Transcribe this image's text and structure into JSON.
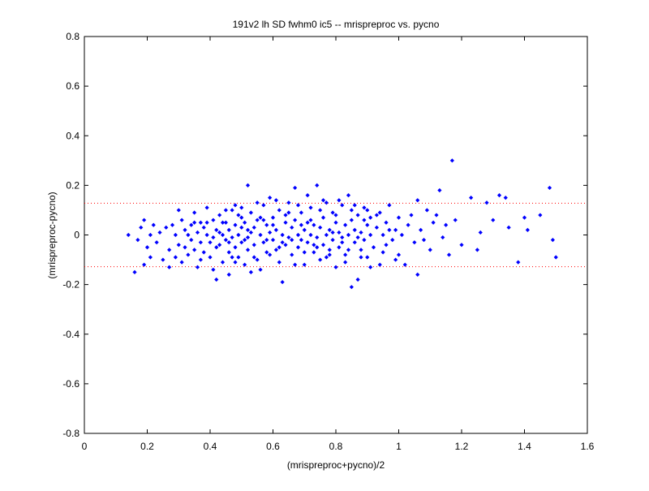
{
  "chart_data": {
    "type": "scatter",
    "title": "191v2 lh SD fwhm0 ic5 -- mrispreproc vs. pycno",
    "xlabel": "(mrispreproc+pycno)/2",
    "ylabel": "(mrispreproc-pycno)",
    "xlim": [
      0,
      1.6
    ],
    "ylim": [
      -0.8,
      0.8
    ],
    "xticks": [
      0,
      0.2,
      0.4,
      0.6,
      0.8,
      1.0,
      1.2,
      1.4,
      1.6
    ],
    "xtick_labels": [
      "0",
      "0.2",
      "0.4",
      "0.6",
      "0.8",
      "1",
      "1.2",
      "1.4",
      "1.6"
    ],
    "yticks": [
      -0.8,
      -0.6,
      -0.4,
      -0.2,
      0,
      0.2,
      0.4,
      0.6,
      0.8
    ],
    "ytick_labels": [
      "-0.8",
      "-0.6",
      "-0.4",
      "-0.2",
      "0",
      "0.2",
      "0.4",
      "0.6",
      "0.8"
    ],
    "grid": false,
    "reference_lines": [
      {
        "y": 0.128,
        "color": "#ff0000",
        "style": "dotted"
      },
      {
        "y": -0.128,
        "color": "#ff0000",
        "style": "dotted"
      }
    ],
    "marker_color": "#0000ff",
    "points": [
      [
        0.14,
        0.0
      ],
      [
        0.16,
        -0.15
      ],
      [
        0.17,
        -0.02
      ],
      [
        0.18,
        0.03
      ],
      [
        0.19,
        -0.12
      ],
      [
        0.19,
        0.06
      ],
      [
        0.2,
        -0.05
      ],
      [
        0.21,
        0.0
      ],
      [
        0.21,
        -0.09
      ],
      [
        0.22,
        0.04
      ],
      [
        0.23,
        -0.03
      ],
      [
        0.24,
        0.01
      ],
      [
        0.25,
        -0.1
      ],
      [
        0.26,
        0.03
      ],
      [
        0.27,
        -0.06
      ],
      [
        0.27,
        -0.13
      ],
      [
        0.28,
        0.04
      ],
      [
        0.29,
        0.0
      ],
      [
        0.29,
        -0.09
      ],
      [
        0.3,
        0.1
      ],
      [
        0.3,
        -0.04
      ],
      [
        0.31,
        0.06
      ],
      [
        0.31,
        -0.11
      ],
      [
        0.32,
        0.02
      ],
      [
        0.32,
        -0.05
      ],
      [
        0.33,
        0.0
      ],
      [
        0.33,
        -0.08
      ],
      [
        0.34,
        0.04
      ],
      [
        0.34,
        -0.02
      ],
      [
        0.35,
        0.09
      ],
      [
        0.35,
        -0.06
      ],
      [
        0.36,
        0.01
      ],
      [
        0.36,
        -0.13
      ],
      [
        0.37,
        0.05
      ],
      [
        0.37,
        -0.03
      ],
      [
        0.38,
        0.03
      ],
      [
        0.38,
        -0.07
      ],
      [
        0.39,
        0.11
      ],
      [
        0.39,
        0.0
      ],
      [
        0.4,
        -0.03
      ],
      [
        0.4,
        -0.09
      ],
      [
        0.41,
        0.06
      ],
      [
        0.41,
        -0.01
      ],
      [
        0.42,
        0.02
      ],
      [
        0.42,
        -0.05
      ],
      [
        0.42,
        -0.18
      ],
      [
        0.43,
        0.08
      ],
      [
        0.43,
        -0.04
      ],
      [
        0.44,
        0.0
      ],
      [
        0.44,
        -0.11
      ],
      [
        0.45,
        0.05
      ],
      [
        0.45,
        -0.02
      ],
      [
        0.46,
        0.02
      ],
      [
        0.46,
        -0.07
      ],
      [
        0.46,
        -0.16
      ],
      [
        0.47,
        0.1
      ],
      [
        0.47,
        -0.01
      ],
      [
        0.48,
        0.04
      ],
      [
        0.48,
        -0.05
      ],
      [
        0.48,
        0.12
      ],
      [
        0.49,
        0.0
      ],
      [
        0.49,
        -0.09
      ],
      [
        0.5,
        0.07
      ],
      [
        0.5,
        -0.03
      ],
      [
        0.5,
        0.03
      ],
      [
        0.51,
        -0.12
      ],
      [
        0.51,
        0.05
      ],
      [
        0.52,
        0.2
      ],
      [
        0.52,
        -0.01
      ],
      [
        0.52,
        -0.06
      ],
      [
        0.53,
        0.01
      ],
      [
        0.53,
        0.09
      ],
      [
        0.54,
        -0.04
      ],
      [
        0.54,
        0.03
      ],
      [
        0.55,
        -0.1
      ],
      [
        0.55,
        0.06
      ],
      [
        0.56,
        0.0
      ],
      [
        0.56,
        -0.14
      ],
      [
        0.57,
        0.12
      ],
      [
        0.57,
        -0.03
      ],
      [
        0.58,
        0.04
      ],
      [
        0.58,
        -0.07
      ],
      [
        0.59,
        0.01
      ],
      [
        0.59,
        0.15
      ],
      [
        0.6,
        -0.02
      ],
      [
        0.6,
        0.07
      ],
      [
        0.61,
        -0.06
      ],
      [
        0.61,
        0.02
      ],
      [
        0.62,
        0.1
      ],
      [
        0.62,
        -0.11
      ],
      [
        0.63,
        0.0
      ],
      [
        0.63,
        -0.19
      ],
      [
        0.64,
        0.05
      ],
      [
        0.64,
        -0.04
      ],
      [
        0.65,
        0.13
      ],
      [
        0.65,
        -0.01
      ],
      [
        0.66,
        0.03
      ],
      [
        0.66,
        -0.08
      ],
      [
        0.67,
        0.06
      ],
      [
        0.67,
        0.19
      ],
      [
        0.68,
        0.0
      ],
      [
        0.68,
        -0.05
      ],
      [
        0.69,
        0.09
      ],
      [
        0.69,
        -0.02
      ],
      [
        0.7,
        0.02
      ],
      [
        0.7,
        -0.12
      ],
      [
        0.71,
        0.05
      ],
      [
        0.71,
        -0.03
      ],
      [
        0.72,
        0.11
      ],
      [
        0.72,
        0.0
      ],
      [
        0.73,
        0.04
      ],
      [
        0.73,
        -0.07
      ],
      [
        0.74,
        0.2
      ],
      [
        0.74,
        -0.01
      ],
      [
        0.75,
        0.03
      ],
      [
        0.75,
        -0.1
      ],
      [
        0.76,
        0.07
      ],
      [
        0.76,
        -0.04
      ],
      [
        0.77,
        0.0
      ],
      [
        0.77,
        0.13
      ],
      [
        0.78,
        -0.06
      ],
      [
        0.78,
        0.02
      ],
      [
        0.79,
        0.09
      ],
      [
        0.79,
        -0.02
      ],
      [
        0.8,
        0.05
      ],
      [
        0.8,
        -0.13
      ],
      [
        0.81,
        0.01
      ],
      [
        0.81,
        -0.05
      ],
      [
        0.82,
        0.12
      ],
      [
        0.82,
        -0.01
      ],
      [
        0.83,
        0.04
      ],
      [
        0.83,
        -0.08
      ],
      [
        0.84,
        0.0
      ],
      [
        0.84,
        0.16
      ],
      [
        0.85,
        -0.21
      ],
      [
        0.85,
        0.06
      ],
      [
        0.86,
        -0.03
      ],
      [
        0.86,
        0.02
      ],
      [
        0.87,
        -0.18
      ],
      [
        0.87,
        0.08
      ],
      [
        0.88,
        -0.06
      ],
      [
        0.88,
        0.01
      ],
      [
        0.89,
        0.11
      ],
      [
        0.89,
        -0.02
      ],
      [
        0.9,
        0.04
      ],
      [
        0.9,
        -0.09
      ],
      [
        0.91,
        0.0
      ],
      [
        0.91,
        0.07
      ],
      [
        0.92,
        -0.05
      ],
      [
        0.93,
        0.03
      ],
      [
        0.94,
        -0.12
      ],
      [
        0.94,
        0.09
      ],
      [
        0.95,
        0.0
      ],
      [
        0.96,
        -0.04
      ],
      [
        0.96,
        0.05
      ],
      [
        0.97,
        0.12
      ],
      [
        0.98,
        -0.02
      ],
      [
        0.99,
        0.02
      ],
      [
        1.0,
        -0.08
      ],
      [
        1.0,
        0.07
      ],
      [
        1.01,
        0.0
      ],
      [
        1.02,
        -0.12
      ],
      [
        1.03,
        0.04
      ],
      [
        1.04,
        0.08
      ],
      [
        1.05,
        -0.03
      ],
      [
        1.06,
        0.14
      ],
      [
        1.06,
        -0.16
      ],
      [
        1.07,
        0.02
      ],
      [
        1.08,
        -0.02
      ],
      [
        1.09,
        0.1
      ],
      [
        1.1,
        -0.06
      ],
      [
        1.11,
        0.05
      ],
      [
        1.12,
        0.08
      ],
      [
        1.13,
        0.18
      ],
      [
        1.14,
        -0.01
      ],
      [
        1.15,
        0.04
      ],
      [
        1.16,
        -0.08
      ],
      [
        1.17,
        0.3
      ],
      [
        1.18,
        0.06
      ],
      [
        1.2,
        -0.04
      ],
      [
        1.23,
        0.15
      ],
      [
        1.25,
        -0.06
      ],
      [
        1.26,
        0.01
      ],
      [
        1.28,
        0.13
      ],
      [
        1.3,
        0.06
      ],
      [
        1.32,
        0.16
      ],
      [
        1.34,
        0.15
      ],
      [
        1.35,
        0.03
      ],
      [
        1.38,
        -0.11
      ],
      [
        1.4,
        0.07
      ],
      [
        1.41,
        0.02
      ],
      [
        1.45,
        0.08
      ],
      [
        1.48,
        0.19
      ],
      [
        1.49,
        -0.02
      ],
      [
        1.5,
        -0.09
      ],
      [
        0.35,
        0.05
      ],
      [
        0.37,
        -0.1
      ],
      [
        0.39,
        0.05
      ],
      [
        0.41,
        -0.14
      ],
      [
        0.43,
        0.01
      ],
      [
        0.45,
        0.1
      ],
      [
        0.47,
        -0.09
      ],
      [
        0.49,
        0.08
      ],
      [
        0.51,
        -0.02
      ],
      [
        0.53,
        -0.15
      ],
      [
        0.55,
        0.13
      ],
      [
        0.57,
        0.06
      ],
      [
        0.59,
        -0.08
      ],
      [
        0.61,
        0.14
      ],
      [
        0.63,
        -0.03
      ],
      [
        0.65,
        0.09
      ],
      [
        0.67,
        -0.12
      ],
      [
        0.69,
        0.04
      ],
      [
        0.71,
        0.16
      ],
      [
        0.73,
        -0.04
      ],
      [
        0.75,
        0.1
      ],
      [
        0.77,
        -0.09
      ],
      [
        0.79,
        0.01
      ],
      [
        0.81,
        0.14
      ],
      [
        0.83,
        -0.11
      ],
      [
        0.85,
        0.1
      ],
      [
        0.87,
        -0.01
      ],
      [
        0.89,
        0.06
      ],
      [
        0.91,
        -0.13
      ],
      [
        0.93,
        0.08
      ],
      [
        0.95,
        -0.07
      ],
      [
        0.97,
        0.02
      ],
      [
        0.99,
        -0.1
      ],
      [
        0.44,
        0.05
      ],
      [
        0.46,
        -0.03
      ],
      [
        0.48,
        -0.11
      ],
      [
        0.5,
        0.11
      ],
      [
        0.52,
        0.02
      ],
      [
        0.54,
        -0.09
      ],
      [
        0.56,
        0.07
      ],
      [
        0.58,
        -0.02
      ],
      [
        0.6,
        0.04
      ],
      [
        0.62,
        -0.05
      ],
      [
        0.64,
        0.08
      ],
      [
        0.66,
        -0.02
      ],
      [
        0.68,
        0.12
      ],
      [
        0.7,
        -0.07
      ],
      [
        0.72,
        0.06
      ],
      [
        0.74,
        -0.05
      ],
      [
        0.76,
        0.14
      ],
      [
        0.78,
        -0.08
      ],
      [
        0.8,
        0.08
      ],
      [
        0.82,
        -0.03
      ],
      [
        0.84,
        -0.06
      ],
      [
        0.86,
        0.12
      ],
      [
        0.88,
        -0.09
      ],
      [
        0.9,
        0.1
      ]
    ]
  }
}
